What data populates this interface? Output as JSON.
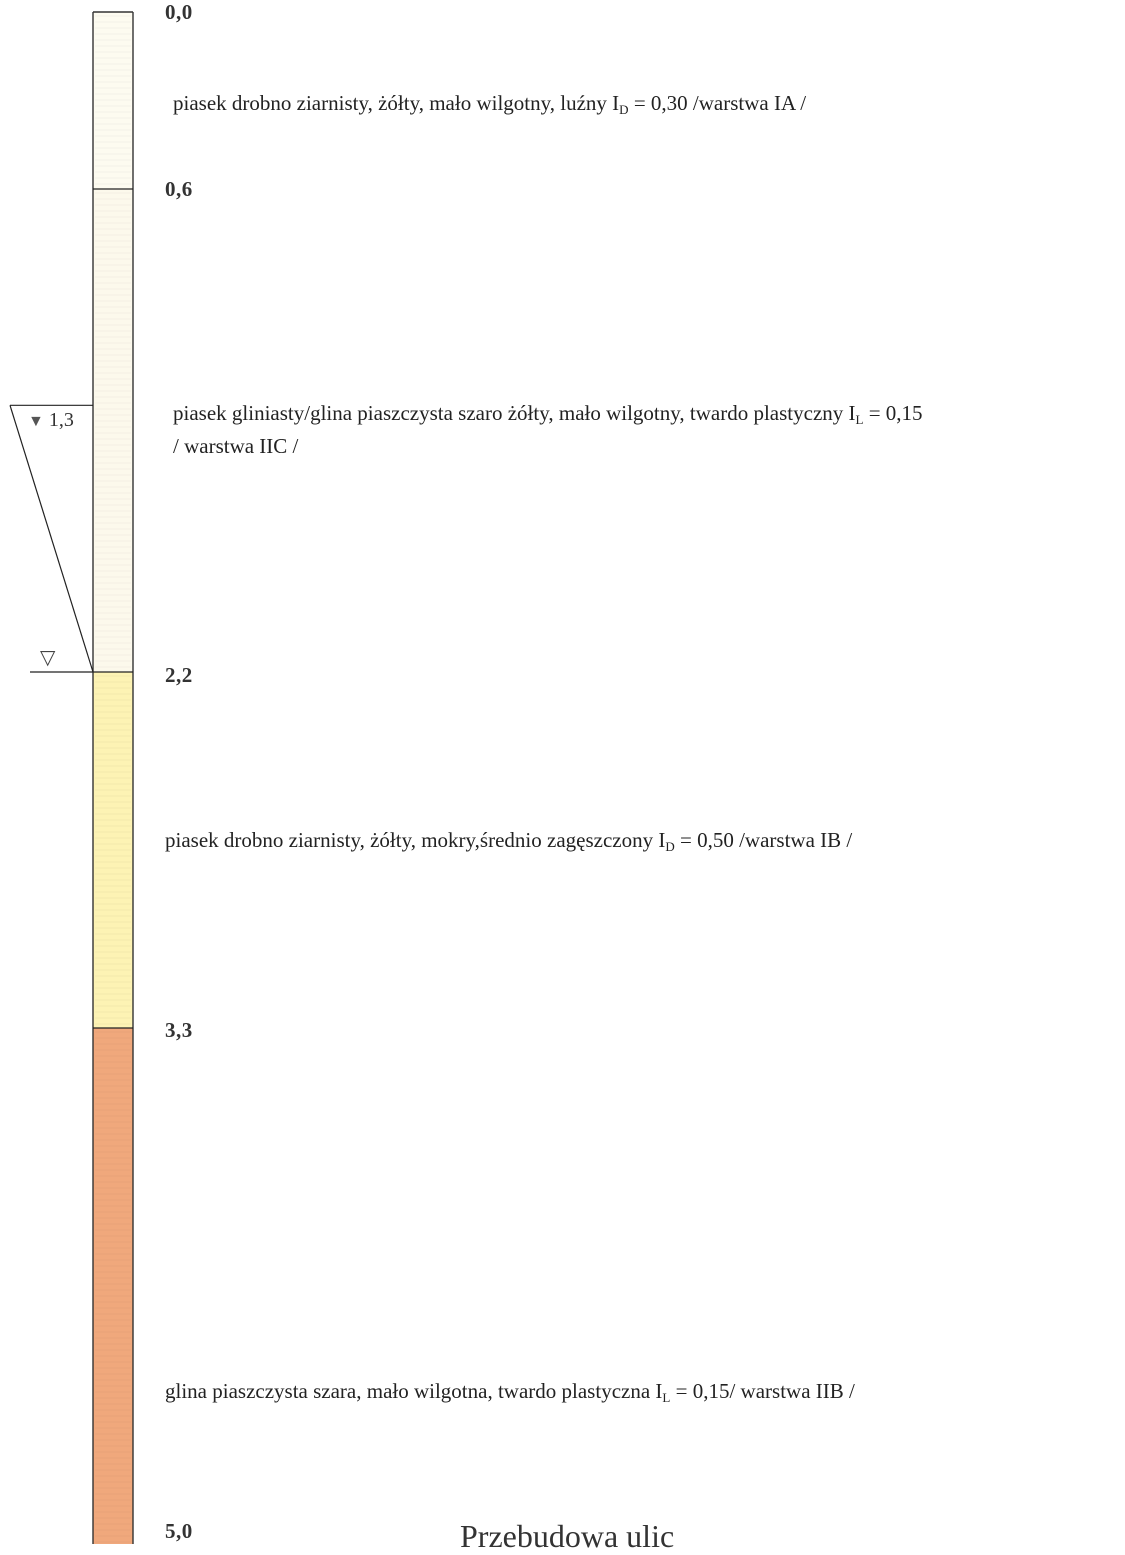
{
  "depths": [
    {
      "value": 0.0,
      "label": "0,0"
    },
    {
      "value": 0.6,
      "label": "0,6"
    },
    {
      "value": 2.2,
      "label": "2,2"
    },
    {
      "value": 3.3,
      "label": "3,3"
    },
    {
      "value": 5.0,
      "label": "5,0"
    }
  ],
  "layers": [
    {
      "top": 0.0,
      "bottom": 0.6,
      "color": "#fdfbf0",
      "text_pre": "piasek  drobno ziarnisty, żółty, mało wilgotny, luźny I",
      "sub": "D",
      "text_post": " = 0,30  /warstwa IA /",
      "line2": ""
    },
    {
      "top": 0.6,
      "bottom": 2.2,
      "color": "#fcf9ec",
      "text_pre": "piasek gliniasty/glina piaszczysta szaro żółty, mało wilgotny, twardo plastyczny I",
      "sub": "L",
      "text_post": " = 0,15",
      "line2": "/ warstwa IIC /"
    },
    {
      "top": 2.2,
      "bottom": 3.3,
      "color": "#fdf3b4",
      "text_pre": "piasek  drobno ziarnisty, żółty, mokry,średnio zagęszczony I",
      "sub": "D",
      "text_post": " = 0,50  /warstwa IB /",
      "line2": ""
    },
    {
      "top": 3.3,
      "bottom": 5.0,
      "color": "#f0a87c",
      "text_pre": "glina piaszczysta szara, mało wilgotna, twardo plastyczna I",
      "sub": "L",
      "text_post": " = 0,15/ warstwa IIB /",
      "line2": ""
    }
  ],
  "water_levels": {
    "first_encountered": {
      "depth": 1.3,
      "label": "1,3",
      "icon": "filled-triangle-icon"
    },
    "stabilized": {
      "depth": 2.2,
      "icon": "open-triangle-icon"
    }
  },
  "footer": {
    "title": "Przebudowa ulic"
  },
  "colors": {
    "line": "#222222",
    "column_border": "#333333"
  }
}
